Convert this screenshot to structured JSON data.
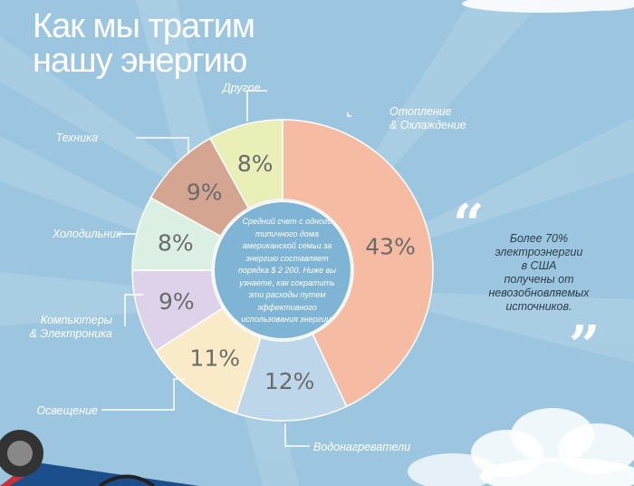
{
  "title": {
    "line1": "Как мы тратим",
    "line2": "нашу энергию"
  },
  "center_text": "Средний счет с одного типичного дома американской семьи за энергию составляет порядка $ 2 200. Ниже вы узнаете, как сократить эти расходы путем эффективного использования энергии.",
  "quote": {
    "open_mark": "“",
    "close_mark": "”",
    "lines": [
      "Более 70%",
      "электроэнергии",
      "в США",
      "получены от",
      "невозобновляемых",
      "источников."
    ]
  },
  "colors": {
    "background": "#9cc6df",
    "label_text": "#ffffff",
    "leader_lines": "#ffffff"
  },
  "chart_data": {
    "type": "pie",
    "donut": true,
    "slices": [
      {
        "label": "Отопление & Охлаждение",
        "value": 43,
        "pct_text": "43%",
        "color": "#f5bba3"
      },
      {
        "label": "Водонагреватели",
        "value": 12,
        "pct_text": "12%",
        "color": "#bed6e9"
      },
      {
        "label": "Освещение",
        "value": 11,
        "pct_text": "11%",
        "color": "#faebc8"
      },
      {
        "label": "Компьютеры & Электроника",
        "value": 9,
        "pct_text": "9%",
        "color": "#ddd2ea"
      },
      {
        "label": "Холодильник",
        "value": 8,
        "pct_text": "8%",
        "color": "#dcefe3"
      },
      {
        "label": "Техника",
        "value": 9,
        "pct_text": "9%",
        "color": "#d4a590"
      },
      {
        "label": "Другое",
        "value": 8,
        "pct_text": "8%",
        "color": "#e9efb7"
      }
    ],
    "label_lines": [
      [
        "Отопление",
        "& Охлаждение"
      ],
      [
        "Водонагреватели"
      ],
      [
        "Освещение"
      ],
      [
        "Компьютеры",
        "& Электроника"
      ],
      [
        "Холодильник"
      ],
      [
        "Техника"
      ],
      [
        "Другое"
      ]
    ]
  }
}
